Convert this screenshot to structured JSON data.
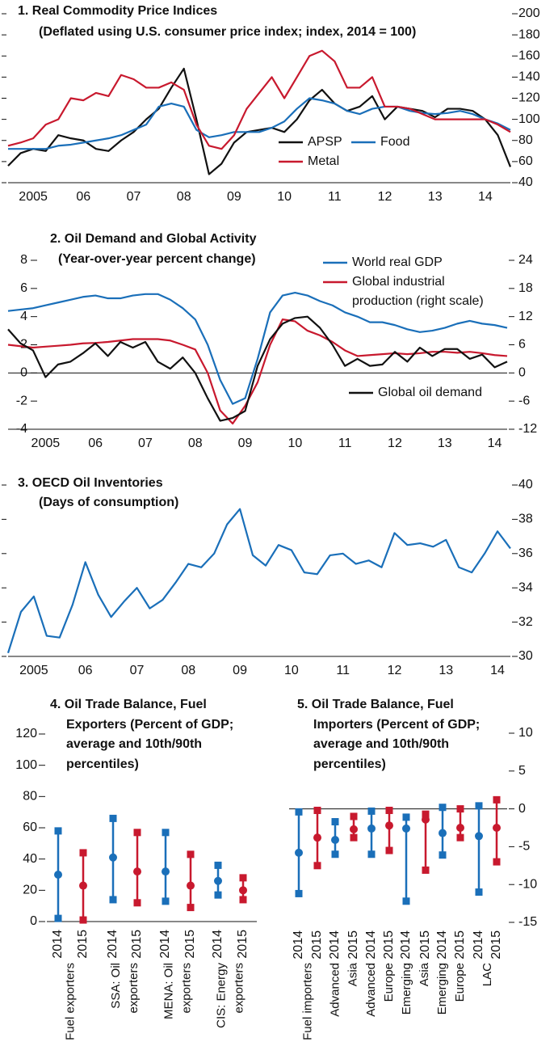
{
  "chart_data": [
    {
      "type": "line",
      "title": "1. Real Commodity Price Indices",
      "subtitle": "(Deflated using U.S. consumer price index; index, 2014 = 100)",
      "x": [
        2005,
        2005.25,
        2005.5,
        2005.75,
        2006,
        2006.25,
        2006.5,
        2006.75,
        2007,
        2007.25,
        2007.5,
        2007.75,
        2008,
        2008.25,
        2008.5,
        2008.75,
        2009,
        2009.25,
        2009.5,
        2009.75,
        2010,
        2010.25,
        2010.5,
        2010.75,
        2011,
        2011.25,
        2011.5,
        2011.75,
        2012,
        2012.25,
        2012.5,
        2012.75,
        2013,
        2013.25,
        2013.5,
        2013.75,
        2014,
        2014.25,
        2014.5,
        2014.75,
        2015
      ],
      "xlim": [
        2005,
        2015
      ],
      "xticks": [
        {
          "value": 2005.5,
          "label": "2005"
        },
        {
          "value": 2006.5,
          "label": "06"
        },
        {
          "value": 2007.5,
          "label": "07"
        },
        {
          "value": 2008.5,
          "label": "08"
        },
        {
          "value": 2009.5,
          "label": "09"
        },
        {
          "value": 2010.5,
          "label": "10"
        },
        {
          "value": 2011.5,
          "label": "11"
        },
        {
          "value": 2012.5,
          "label": "12"
        },
        {
          "value": 2013.5,
          "label": "13"
        },
        {
          "value": 2014.5,
          "label": "14"
        }
      ],
      "ylim": [
        40,
        200
      ],
      "yticks": [
        40,
        60,
        80,
        100,
        120,
        140,
        160,
        180,
        200
      ],
      "yaxis": "right",
      "series": [
        {
          "name": "APSP",
          "color": "#111111",
          "values": [
            56,
            68,
            72,
            70,
            85,
            82,
            80,
            72,
            70,
            80,
            88,
            100,
            110,
            130,
            148,
            100,
            48,
            58,
            78,
            88,
            90,
            92,
            88,
            100,
            118,
            128,
            115,
            108,
            112,
            122,
            100,
            112,
            110,
            108,
            102,
            110,
            110,
            108,
            100,
            85,
            55
          ]
        },
        {
          "name": "Food",
          "color": "#1a6fb9",
          "values": [
            72,
            72,
            72,
            72,
            75,
            76,
            78,
            80,
            82,
            85,
            90,
            95,
            112,
            115,
            112,
            90,
            83,
            85,
            88,
            88,
            88,
            92,
            98,
            110,
            120,
            118,
            115,
            108,
            105,
            110,
            112,
            112,
            108,
            106,
            105,
            106,
            108,
            105,
            100,
            96,
            90
          ]
        },
        {
          "name": "Metal",
          "color": "#c8192e",
          "values": [
            75,
            78,
            82,
            95,
            100,
            120,
            118,
            125,
            122,
            142,
            138,
            130,
            130,
            135,
            128,
            95,
            75,
            72,
            85,
            110,
            125,
            140,
            120,
            140,
            160,
            165,
            155,
            130,
            130,
            140,
            112,
            112,
            110,
            105,
            100,
            100,
            100,
            100,
            100,
            95,
            88
          ]
        }
      ]
    },
    {
      "type": "line",
      "title": "2. Oil Demand and Global Activity",
      "subtitle": "(Year-over-year percent change)",
      "x": [
        2004.75,
        2005,
        2005.25,
        2005.5,
        2005.75,
        2006,
        2006.25,
        2006.5,
        2006.75,
        2007,
        2007.25,
        2007.5,
        2007.75,
        2008,
        2008.25,
        2008.5,
        2008.75,
        2009,
        2009.25,
        2009.5,
        2009.75,
        2010,
        2010.25,
        2010.5,
        2010.75,
        2011,
        2011.25,
        2011.5,
        2011.75,
        2012,
        2012.25,
        2012.5,
        2012.75,
        2013,
        2013.25,
        2013.5,
        2013.75,
        2014,
        2014.25,
        2014.5,
        2014.75
      ],
      "xlim": [
        2004.75,
        2014.75
      ],
      "xticks": [
        {
          "value": 2005.5,
          "label": "2005"
        },
        {
          "value": 2006.5,
          "label": "06"
        },
        {
          "value": 2007.5,
          "label": "07"
        },
        {
          "value": 2008.5,
          "label": "08"
        },
        {
          "value": 2009.5,
          "label": "09"
        },
        {
          "value": 2010.5,
          "label": "10"
        },
        {
          "value": 2011.5,
          "label": "11"
        },
        {
          "value": 2012.5,
          "label": "12"
        },
        {
          "value": 2013.5,
          "label": "13"
        },
        {
          "value": 2014.5,
          "label": "14"
        }
      ],
      "ylim": [
        -4,
        8
      ],
      "yticks": [
        -4,
        -2,
        0,
        2,
        4,
        6,
        8
      ],
      "yaxis": "left",
      "y2lim": [
        -12,
        24
      ],
      "y2ticks": [
        -12,
        -6,
        0,
        6,
        12,
        18,
        24
      ],
      "zero_line": true,
      "series": [
        {
          "name": "World real GDP",
          "color": "#1a6fb9",
          "values": [
            4.4,
            4.5,
            4.6,
            4.8,
            5.0,
            5.2,
            5.4,
            5.5,
            5.3,
            5.3,
            5.5,
            5.6,
            5.6,
            5.2,
            4.6,
            3.8,
            2.0,
            -0.5,
            -2.2,
            -1.8,
            1.0,
            4.3,
            5.5,
            5.7,
            5.5,
            5.1,
            4.8,
            4.3,
            4.0,
            3.6,
            3.6,
            3.4,
            3.1,
            2.9,
            3.0,
            3.2,
            3.5,
            3.7,
            3.5,
            3.4,
            3.2
          ]
        },
        {
          "name": "Global industrial\nproduction (right scale)",
          "color": "#c8192e",
          "axis": "y2",
          "values": [
            6.0,
            5.7,
            5.4,
            5.6,
            5.8,
            6.0,
            6.3,
            6.4,
            6.6,
            6.9,
            7.2,
            7.2,
            7.2,
            6.9,
            6.0,
            5.0,
            0,
            -8,
            -10.8,
            -7,
            -2,
            6,
            11.4,
            11.0,
            9,
            8,
            6.6,
            4.8,
            3.6,
            3.8,
            4,
            4.2,
            4,
            4.2,
            4.5,
            4.5,
            4.3,
            4.5,
            4.2,
            3.8,
            3.6
          ]
        },
        {
          "name": "Global oil demand",
          "color": "#111111",
          "values": [
            3.1,
            2.1,
            1.6,
            -0.3,
            0.6,
            0.8,
            1.4,
            2.1,
            1.2,
            2.2,
            1.8,
            2.2,
            0.8,
            0.3,
            1.1,
            0,
            -1.8,
            -3.4,
            -3.2,
            -2.7,
            0.5,
            2.4,
            3.5,
            3.9,
            4.0,
            3.2,
            2.0,
            0.5,
            1.0,
            0.5,
            0.6,
            1.5,
            0.8,
            1.8,
            1.2,
            1.7,
            1.7,
            1.0,
            1.3,
            0.4,
            0.8
          ]
        }
      ]
    },
    {
      "type": "line",
      "title": "3. OECD Oil Inventories",
      "subtitle": "(Days of consumption)",
      "x": [
        2005,
        2005.25,
        2005.5,
        2005.75,
        2006,
        2006.25,
        2006.5,
        2006.75,
        2007,
        2007.25,
        2007.5,
        2007.75,
        2008,
        2008.25,
        2008.5,
        2008.75,
        2009,
        2009.25,
        2009.5,
        2009.75,
        2010,
        2010.25,
        2010.5,
        2010.75,
        2011,
        2011.25,
        2011.5,
        2011.75,
        2012,
        2012.25,
        2012.5,
        2012.75,
        2013,
        2013.25,
        2013.5,
        2013.75,
        2014,
        2014.25,
        2014.5,
        2014.75
      ],
      "xlim": [
        2005,
        2014.75
      ],
      "xticks": [
        {
          "value": 2005.5,
          "label": "2005"
        },
        {
          "value": 2006.5,
          "label": "06"
        },
        {
          "value": 2007.5,
          "label": "07"
        },
        {
          "value": 2008.5,
          "label": "08"
        },
        {
          "value": 2009.5,
          "label": "09"
        },
        {
          "value": 2010.5,
          "label": "10"
        },
        {
          "value": 2011.5,
          "label": "11"
        },
        {
          "value": 2012.5,
          "label": "12"
        },
        {
          "value": 2013.5,
          "label": "13"
        },
        {
          "value": 2014.5,
          "label": "14"
        }
      ],
      "ylim": [
        30,
        40
      ],
      "yticks": [
        30,
        32,
        34,
        36,
        38,
        40
      ],
      "yaxis": "right",
      "series": [
        {
          "color": "#1a6fb9",
          "values": [
            30.2,
            32.6,
            33.5,
            31.2,
            31.1,
            33.0,
            35.5,
            33.6,
            32.3,
            33.2,
            34.0,
            32.8,
            33.3,
            34.3,
            35.4,
            35.2,
            36.0,
            37.7,
            38.6,
            35.9,
            35.3,
            36.5,
            36.2,
            34.9,
            34.8,
            35.9,
            36.0,
            35.4,
            35.6,
            35.2,
            37.2,
            36.5,
            36.6,
            36.4,
            36.8,
            35.2,
            34.9,
            36.0,
            37.3,
            36.3
          ]
        }
      ]
    },
    {
      "type": "range",
      "title": "4. Oil Trade Balance, Fuel Exporters (Percent of GDP; average and 10th/90th percentiles)",
      "groups": [
        "Fuel exporters",
        "SSA: Oil\nexporters",
        "MENA: Oil\nexporters",
        "CIS: Energy\nexporters"
      ],
      "categories": [
        "2014",
        "2015",
        "2014",
        "2015",
        "2014",
        "2015",
        "2014",
        "2015"
      ],
      "high": [
        58,
        44,
        66,
        57,
        57,
        43,
        36,
        28
      ],
      "mean": [
        30,
        23,
        41,
        32,
        32,
        23,
        26,
        20
      ],
      "low": [
        2,
        1,
        14,
        12,
        13,
        9,
        17,
        14
      ],
      "colors": [
        "#1a6fb9",
        "#c8192e",
        "#1a6fb9",
        "#c8192e",
        "#1a6fb9",
        "#c8192e",
        "#1a6fb9",
        "#c8192e"
      ],
      "ylim": [
        0,
        120
      ],
      "yticks": [
        0,
        20,
        40,
        60,
        80,
        100,
        120
      ],
      "yaxis": "left",
      "zero_line": true
    },
    {
      "type": "range",
      "title": "5. Oil Trade Balance, Fuel Importers (Percent of GDP; average and 10th/90th percentiles)",
      "groups": [
        "Fuel importers",
        "Advanced\nAsia",
        "Advanced\nEurope",
        "Emerging\nAsia",
        "Emerging\nEurope",
        "LAC"
      ],
      "categories": [
        "2014",
        "2015",
        "2014",
        "2015",
        "2014",
        "2015",
        "2014",
        "2015",
        "2014",
        "2015",
        "2014",
        "2015"
      ],
      "high": [
        -0.4,
        -0.2,
        -1.7,
        -1.0,
        -0.3,
        -0.2,
        -1.1,
        -0.7,
        0.2,
        0,
        0.4,
        1.2
      ],
      "mean": [
        -5.8,
        -3.8,
        -4.1,
        -2.7,
        -2.6,
        -2.2,
        -2.6,
        -1.4,
        -3.2,
        -2.5,
        -3.6,
        -2.5
      ],
      "low": [
        -11.2,
        -7.5,
        -6.0,
        -3.8,
        -6.0,
        -5.5,
        -12.2,
        -8.1,
        -6.1,
        -3.8,
        -11.0,
        -7.0
      ],
      "colors": [
        "#1a6fb9",
        "#c8192e",
        "#1a6fb9",
        "#c8192e",
        "#1a6fb9",
        "#c8192e",
        "#1a6fb9",
        "#c8192e",
        "#1a6fb9",
        "#c8192e",
        "#1a6fb9",
        "#c8192e"
      ],
      "ylim": [
        -15,
        10
      ],
      "yticks": [
        -15,
        -10,
        -5,
        0,
        5,
        10
      ],
      "yaxis": "right",
      "zero_line": true
    }
  ]
}
